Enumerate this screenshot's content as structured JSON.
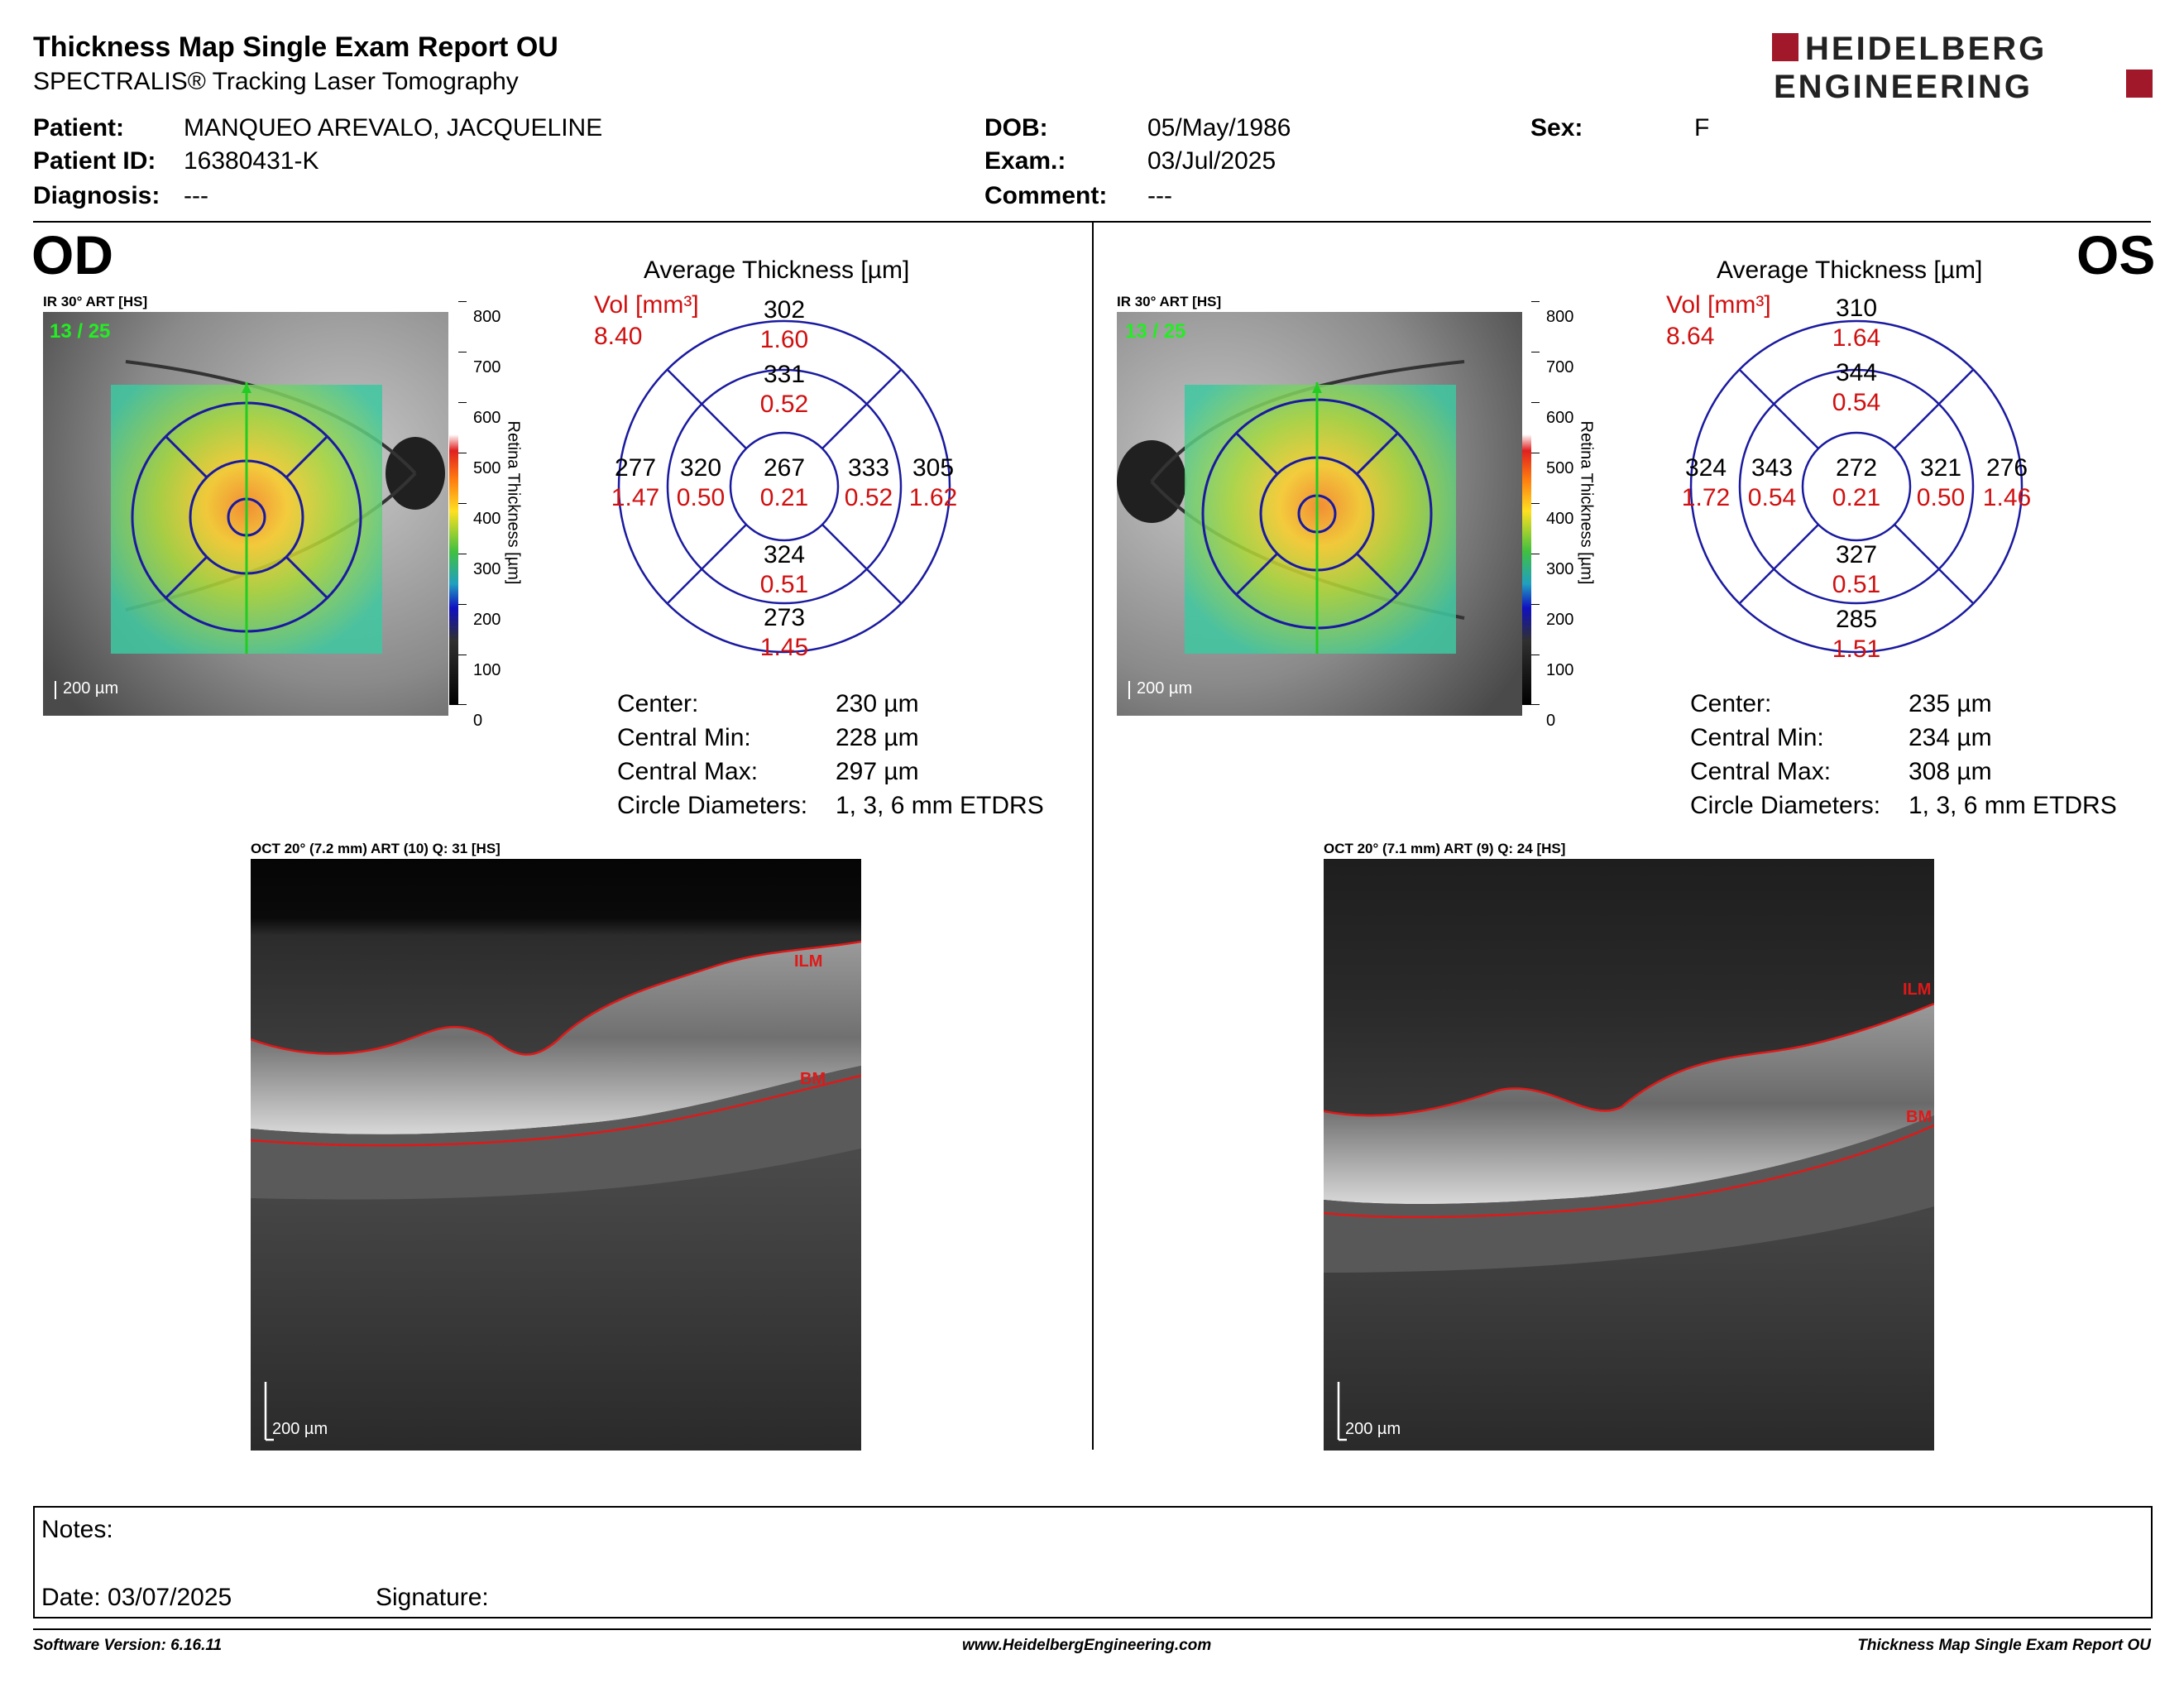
{
  "header": {
    "title": "Thickness Map Single Exam Report OU",
    "subtitle": "SPECTRALIS® Tracking Laser Tomography",
    "logo_line1": "HEIDELBERG",
    "logo_line2": "ENGINEERING"
  },
  "patient": {
    "patient_label": "Patient:",
    "patient_value": "MANQUEO AREVALO, JACQUELINE",
    "id_label": "Patient ID:",
    "id_value": "16380431-K",
    "diagnosis_label": "Diagnosis:",
    "diagnosis_value": "---",
    "dob_label": "DOB:",
    "dob_value": "05/May/1986",
    "exam_label": "Exam.:",
    "exam_value": "03/Jul/2025",
    "comment_label": "Comment:",
    "comment_value": "---",
    "sex_label": "Sex:",
    "sex_value": "F"
  },
  "od": {
    "eye": "OD",
    "ir_label": "IR 30° ART [HS]",
    "frame": "13 / 25",
    "scalebar": "200 µm",
    "colorbar_ticks": [
      "800",
      "700",
      "600",
      "500",
      "400",
      "300",
      "200",
      "100",
      "0"
    ],
    "colorbar_title": "Retina  Thickness [µm]",
    "avg_title": "Average Thickness [µm]",
    "vol_label": "Vol [mm³]",
    "vol_value": "8.40",
    "sectors": {
      "center": [
        "267",
        "0.21"
      ],
      "inner_sup": [
        "331",
        "0.52"
      ],
      "inner_temp": [
        "320",
        "0.50"
      ],
      "inner_nasal": [
        "333",
        "0.52"
      ],
      "inner_inf": [
        "324",
        "0.51"
      ],
      "outer_sup": [
        "302",
        "1.60"
      ],
      "outer_temp": [
        "277",
        "1.47"
      ],
      "outer_nasal": [
        "305",
        "1.62"
      ],
      "outer_inf": [
        "273",
        "1.45"
      ]
    },
    "stats": [
      {
        "label": "Center:",
        "value": "230 µm"
      },
      {
        "label": "Central Min:",
        "value": "228 µm"
      },
      {
        "label": "Central Max:",
        "value": "297 µm"
      },
      {
        "label": "Circle Diameters:",
        "value": "1, 3, 6 mm ETDRS"
      }
    ],
    "oct_label": "OCT 20° (7.2 mm) ART (10) Q: 31 [HS]",
    "oct_ilm": "ILM",
    "oct_bm": "BM",
    "oct_scalebar": "200 µm"
  },
  "os": {
    "eye": "OS",
    "ir_label": "IR 30° ART [HS]",
    "frame": "13 / 25",
    "scalebar": "200 µm",
    "colorbar_ticks": [
      "800",
      "700",
      "600",
      "500",
      "400",
      "300",
      "200",
      "100",
      "0"
    ],
    "colorbar_title": "Retina  Thickness [µm]",
    "avg_title": "Average Thickness [µm]",
    "vol_label": "Vol [mm³]",
    "vol_value": "8.64",
    "sectors": {
      "center": [
        "272",
        "0.21"
      ],
      "inner_sup": [
        "344",
        "0.54"
      ],
      "inner_temp": [
        "343",
        "0.54"
      ],
      "inner_nasal": [
        "321",
        "0.50"
      ],
      "inner_inf": [
        "327",
        "0.51"
      ],
      "outer_sup": [
        "310",
        "1.64"
      ],
      "outer_temp": [
        "324",
        "1.72"
      ],
      "outer_nasal": [
        "276",
        "1.46"
      ],
      "outer_inf": [
        "285",
        "1.51"
      ]
    },
    "stats": [
      {
        "label": "Center:",
        "value": "235 µm"
      },
      {
        "label": "Central Min:",
        "value": "234 µm"
      },
      {
        "label": "Central Max:",
        "value": "308 µm"
      },
      {
        "label": "Circle Diameters:",
        "value": "1, 3, 6 mm ETDRS"
      }
    ],
    "oct_label": "OCT 20° (7.1 mm) ART (9) Q: 24 [HS]",
    "oct_ilm": "ILM",
    "oct_bm": "BM",
    "oct_scalebar": "200 µm"
  },
  "notes": {
    "notes_label": "Notes:",
    "date_label": "Date: 03/07/2025",
    "signature_label": "Signature:"
  },
  "footer": {
    "software": "Software Version: 6.16.11",
    "website": "www.HeidelbergEngineering.com",
    "report": "Thickness Map Single Exam Report OU"
  },
  "colors": {
    "ring": "#1a1aa0",
    "red_value": "#d01010",
    "frame_green": "#22ee22",
    "logo_red": "#a0182a"
  }
}
